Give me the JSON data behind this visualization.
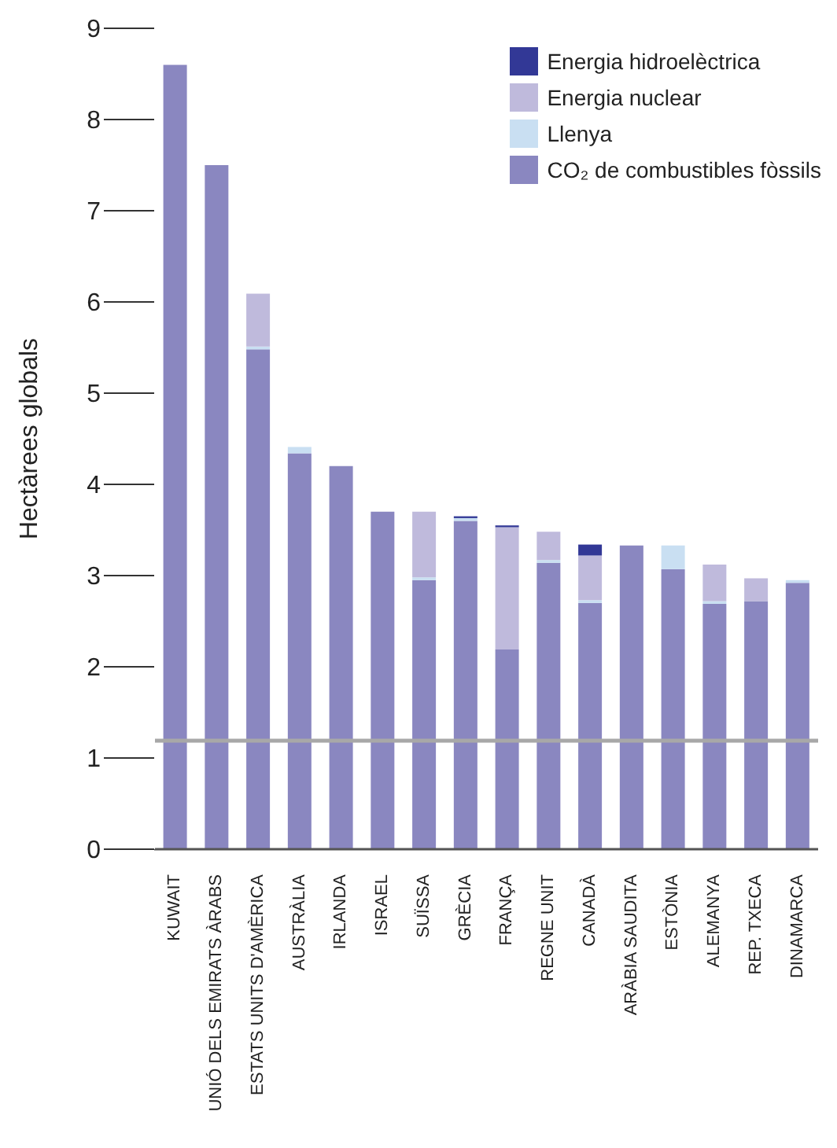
{
  "chart_data": {
    "type": "bar",
    "stacked": true,
    "ylabel": "Hectàrees globals",
    "categories": [
      "KUWAIT",
      "UNIÓ DELS EMIRATS ÀRABS",
      "ESTATS UNITS D'AMÈRICA",
      "AUSTRÀLIA",
      "IRLANDA",
      "ISRAEL",
      "SUÏSSA",
      "GRÈCIA",
      "FRANÇA",
      "REGNE UNIT",
      "CANADÀ",
      "ARÀBIA SAUDITA",
      "ESTÒNIA",
      "ALEMANYA",
      "REP. TXECA",
      "DINAMARCA"
    ],
    "series": [
      {
        "name": "CO₂ de combustibles fòssils",
        "color": "#8a87c0",
        "values": [
          8.6,
          7.5,
          5.48,
          4.34,
          4.2,
          3.7,
          2.95,
          3.6,
          2.19,
          3.14,
          2.7,
          3.33,
          3.07,
          2.69,
          2.72,
          2.92
        ]
      },
      {
        "name": "Llenya",
        "color": "#c9dff2",
        "values": [
          null,
          null,
          0.03,
          0.07,
          null,
          null,
          0.03,
          0.03,
          null,
          0.03,
          0.03,
          null,
          0.26,
          0.03,
          null,
          0.03
        ]
      },
      {
        "name": "Energia nuclear",
        "color": "#bfbadc",
        "values": [
          null,
          null,
          0.58,
          null,
          null,
          null,
          0.72,
          null,
          1.34,
          0.31,
          0.49,
          null,
          null,
          0.4,
          0.25,
          null
        ]
      },
      {
        "name": "Energia hidroelèctrica",
        "color": "#323896",
        "values": [
          null,
          null,
          null,
          null,
          null,
          null,
          null,
          0.02,
          0.02,
          null,
          0.12,
          null,
          null,
          null,
          null,
          null
        ]
      }
    ],
    "ylim": [
      0,
      9
    ],
    "yticks": [
      0,
      1,
      2,
      3,
      4,
      5,
      6,
      7,
      8,
      9
    ],
    "grid": false,
    "legend": "top right",
    "ref_lines": [
      {
        "axis": "y",
        "value": 1.19,
        "color": "#a8a8a8"
      }
    ]
  }
}
